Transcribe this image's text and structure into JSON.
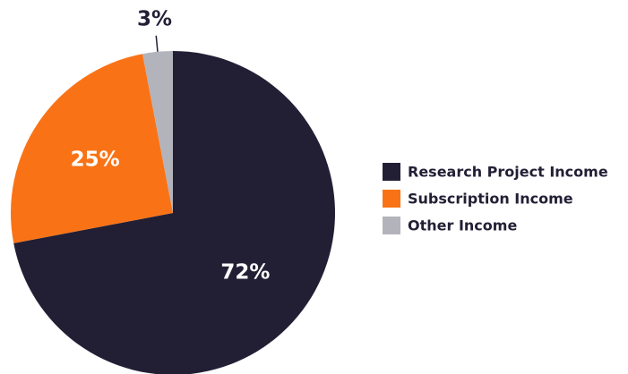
{
  "chart_data": {
    "type": "pie",
    "categories": [
      "Research Project Income",
      "Subscription Income",
      "Other Income"
    ],
    "values": [
      72,
      25,
      3
    ],
    "value_labels": [
      "72%",
      "25%",
      "3%"
    ],
    "colors": [
      "#221f35",
      "#f97316",
      "#b3b3bb"
    ]
  }
}
